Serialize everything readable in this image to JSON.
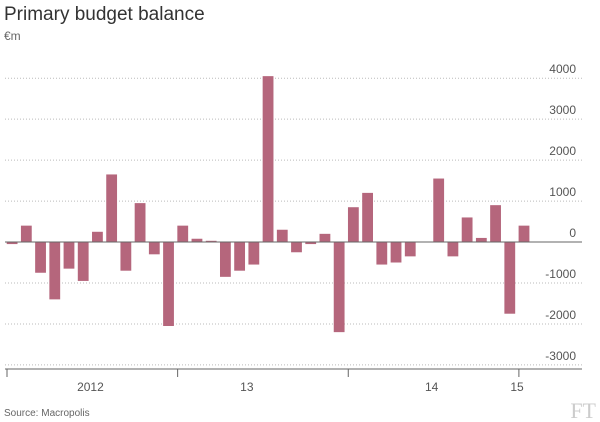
{
  "chart_data": {
    "type": "bar",
    "title": "Primary budget balance",
    "subtitle": "€m",
    "source": "Source: Macropolis",
    "logo": "FT",
    "categories": [
      null,
      null,
      null,
      null,
      null,
      null,
      "2012",
      null,
      null,
      null,
      null,
      null,
      null,
      null,
      null,
      null,
      null,
      "13",
      null,
      null,
      null,
      null,
      null,
      null,
      null,
      null,
      null,
      null,
      null,
      null,
      "14",
      null,
      null,
      null,
      null,
      null,
      "15"
    ],
    "values": [
      -50,
      400,
      -750,
      -1400,
      -650,
      -950,
      250,
      1650,
      -700,
      950,
      -300,
      -2050,
      400,
      80,
      30,
      -850,
      -700,
      -550,
      4050,
      300,
      -250,
      -50,
      200,
      -2200,
      850,
      1200,
      -550,
      -500,
      -350,
      0,
      1550,
      -350,
      600,
      100,
      900,
      -1750,
      400
    ],
    "color": "#b5667c",
    "ylim": [
      -3100,
      4200
    ],
    "yticks": [
      4000,
      3000,
      2000,
      1000,
      0,
      -1000,
      -2000,
      -3000
    ],
    "grid": true
  }
}
